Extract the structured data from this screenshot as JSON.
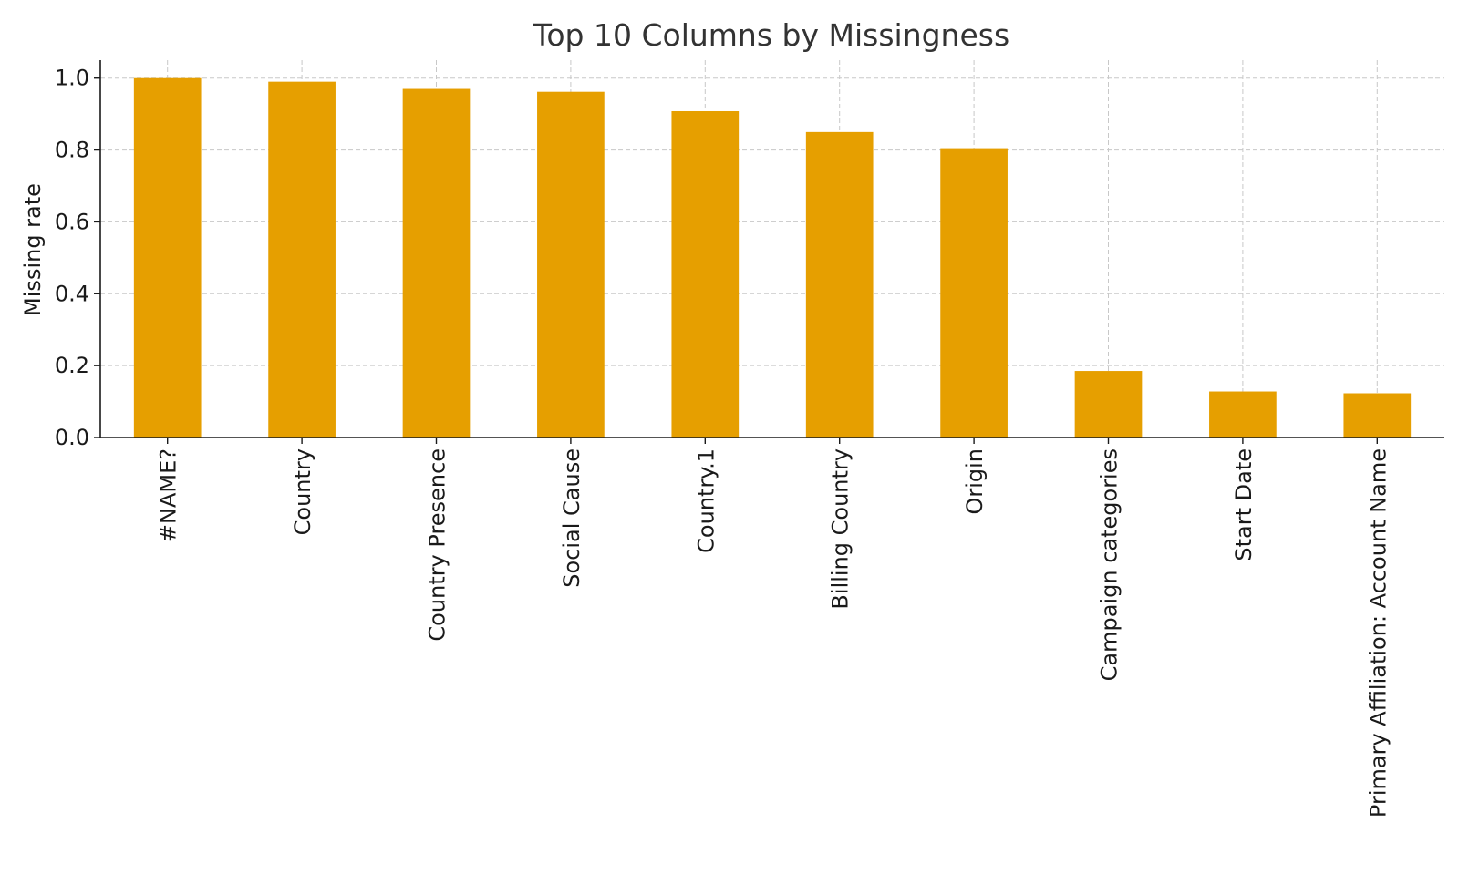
{
  "chart_data": {
    "type": "bar",
    "title": "Top 10 Columns by Missingness",
    "xlabel": "",
    "ylabel": "Missing rate",
    "categories": [
      "#NAME?",
      "Country",
      "Country Presence",
      "Social Cause",
      "Country.1",
      "Billing Country",
      "Origin",
      "Campaign categories",
      "Start Date",
      "Primary Affiliation: Account Name"
    ],
    "values": [
      1.0,
      0.99,
      0.97,
      0.962,
      0.908,
      0.85,
      0.805,
      0.185,
      0.128,
      0.123
    ],
    "ylim": [
      0,
      1.05
    ],
    "yticks": [
      "0.0",
      "0.2",
      "0.4",
      "0.6",
      "0.8",
      "1.0"
    ],
    "grid": true,
    "bar_color": "#E69F00"
  }
}
